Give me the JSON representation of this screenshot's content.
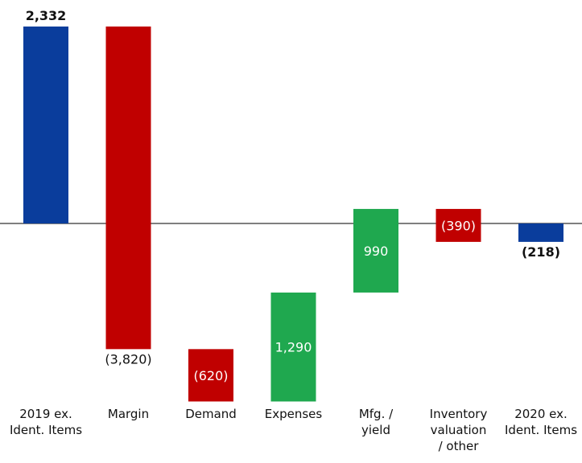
{
  "chart_data": {
    "type": "waterfall",
    "title": "",
    "xlabel": "",
    "ylabel": "",
    "ylim": [
      -4200,
      2332
    ],
    "grid": false,
    "legend": "none",
    "colors": {
      "total": "#0a3d9c",
      "decrease": "#c00000",
      "increase": "#1fa84f",
      "baseline": "#555555",
      "label_dark": "#111111",
      "label_light": "#ffffff"
    },
    "bars": [
      {
        "category": "2019 ex.\nIdent. Items",
        "kind": "total",
        "value": 2332,
        "label": "2,332"
      },
      {
        "category": "Margin",
        "kind": "decrease",
        "value": -3820,
        "label": "(3,820)"
      },
      {
        "category": "Demand",
        "kind": "decrease",
        "value": -620,
        "label": "(620)"
      },
      {
        "category": "Expenses",
        "kind": "increase",
        "value": 1290,
        "label": "1,290"
      },
      {
        "category": "Mfg. /\nyield",
        "kind": "increase",
        "value": 990,
        "label": "990"
      },
      {
        "category": "Inventory\nvaluation\n/ other",
        "kind": "decrease",
        "value": -390,
        "label": "(390)"
      },
      {
        "category": "2020 ex.\nIdent. Items",
        "kind": "total",
        "value": -218,
        "label": "(218)"
      }
    ]
  }
}
